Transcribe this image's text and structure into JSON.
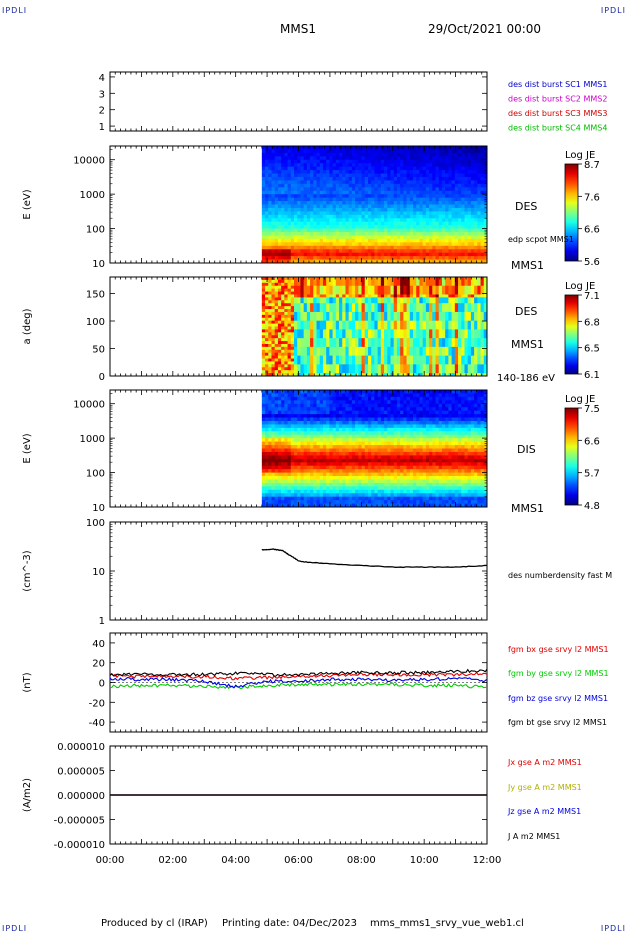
{
  "corners": {
    "top_left": "IPDLI",
    "top_right": "IPDLI",
    "bottom_left": "IPDLI",
    "bottom_right": "IPDLI"
  },
  "header": {
    "title": "MMS1",
    "date": "29/Oct/2021 00:00"
  },
  "footer": {
    "produced": "Produced by cl (IRAP)",
    "printing": "Printing date: 04/Dec/2023",
    "file": "mms_mms1_srvy_vue_web1.cl"
  },
  "chart_data": [
    {
      "type": "line",
      "name": "spacecraft-indicator",
      "yticks": [
        "1",
        "2",
        "3",
        "4"
      ],
      "ylim": [
        0.7,
        4.3
      ],
      "legend": [
        {
          "label": "des dist burst SC1 MMS1",
          "color": "#0000cc"
        },
        {
          "label": "des dist burst SC2 MMS2",
          "color": "#cc00cc"
        },
        {
          "label": "des dist burst SC3 MMS3",
          "color": "#cc0000"
        },
        {
          "label": "des dist burst SC4 MMS4",
          "color": "#00bb00"
        }
      ]
    },
    {
      "type": "heatmap",
      "name": "des-energy-spectrogram",
      "ylabel": "E (eV)",
      "yscale": "log",
      "ylim": [
        10,
        25000
      ],
      "yticks": [
        "10",
        "100",
        "1000",
        "10000"
      ],
      "data_start": "04:50",
      "colorbar": {
        "title": "Log JE",
        "ticks": [
          "8.7",
          "7.6",
          "6.6",
          "5.6"
        ]
      },
      "labels": [
        "DES",
        "edp scpot MMS1",
        "MMS1"
      ]
    },
    {
      "type": "heatmap",
      "name": "des-pitch-angle",
      "ylabel": "a (deg)",
      "ylim": [
        0,
        180
      ],
      "yticks": [
        "0",
        "50",
        "100",
        "150"
      ],
      "data_start": "04:50",
      "colorbar": {
        "title": "Log JE",
        "ticks": [
          "7.1",
          "6.8",
          "6.5",
          "6.1"
        ]
      },
      "labels": [
        "DES",
        "MMS1",
        "140-186 eV"
      ]
    },
    {
      "type": "heatmap",
      "name": "dis-energy-spectrogram",
      "ylabel": "E (eV)",
      "yscale": "log",
      "ylim": [
        10,
        25000
      ],
      "yticks": [
        "10",
        "100",
        "1000",
        "10000"
      ],
      "data_start": "04:50",
      "colorbar": {
        "title": "Log JE",
        "ticks": [
          "7.5",
          "6.6",
          "5.7",
          "4.8"
        ]
      },
      "labels": [
        "DIS",
        "MMS1"
      ]
    },
    {
      "type": "line",
      "name": "number-density",
      "ylabel": "(cm^-3)",
      "yscale": "log",
      "ylim": [
        1,
        100
      ],
      "yticks": [
        "1",
        "10",
        "100"
      ],
      "series": [
        {
          "name": "des numberdensity fast M",
          "color": "#000000",
          "x": [
            "04:50",
            "05:10",
            "05:30",
            "05:40",
            "06:00",
            "06:20",
            "07:00",
            "08:00",
            "09:00",
            "10:00",
            "11:00",
            "12:00"
          ],
          "values": [
            27,
            28,
            26,
            22,
            16,
            15,
            14,
            13,
            12,
            12,
            12,
            13
          ]
        }
      ]
    },
    {
      "type": "line",
      "name": "magnetic-field",
      "ylabel": "(nT)",
      "ylim": [
        -50,
        50
      ],
      "yticks": [
        "-40",
        "-20",
        "0",
        "20",
        "40"
      ],
      "x": [
        "00:00",
        "01:00",
        "02:00",
        "03:00",
        "04:00",
        "05:00",
        "06:00",
        "07:00",
        "08:00",
        "09:00",
        "10:00",
        "11:00",
        "12:00"
      ],
      "series": [
        {
          "name": "fgm bx gse srvy l2 MMS1",
          "color": "#e00000",
          "values": [
            7,
            6,
            6,
            6,
            4,
            5,
            6,
            7,
            8,
            8,
            8,
            8,
            9
          ]
        },
        {
          "name": "fgm by gse srvy l2 MMS1",
          "color": "#00cc00",
          "values": [
            -4,
            -3,
            -3,
            -4,
            -5,
            -3,
            -2,
            -2,
            -2,
            -2,
            -3,
            -3,
            -5
          ]
        },
        {
          "name": "fgm bz gse srvy l2 MMS1",
          "color": "#0000e0",
          "values": [
            4,
            3,
            3,
            1,
            -4,
            1,
            2,
            3,
            3,
            2,
            3,
            4,
            2
          ]
        },
        {
          "name": "fgm bt gse srvy l2 MMS1",
          "color": "#000000",
          "values": [
            8,
            8,
            8,
            8,
            9,
            8,
            8,
            9,
            10,
            10,
            10,
            11,
            12
          ]
        }
      ]
    },
    {
      "type": "line",
      "name": "current-density",
      "ylabel": "(A/m2)",
      "ylim": [
        -1e-05,
        1e-05
      ],
      "yticks": [
        "-0.000010",
        "-0.000005",
        "0.000000",
        "0.000005",
        "0.000010"
      ],
      "xticks": [
        "00:00",
        "02:00",
        "04:00",
        "06:00",
        "08:00",
        "10:00",
        "12:00"
      ],
      "series": [
        {
          "name": "Jx gse A m2 MMS1",
          "color": "#e00000",
          "values": [
            0,
            0
          ]
        },
        {
          "name": "Jy gse A m2 MMS1",
          "color": "#b0b000",
          "values": [
            0,
            0
          ]
        },
        {
          "name": "Jz gse A m2 MMS1",
          "color": "#0000e0",
          "values": [
            0,
            0
          ]
        },
        {
          "name": "J A m2 MMS1",
          "color": "#000000",
          "values": [
            0,
            0
          ]
        }
      ]
    }
  ]
}
